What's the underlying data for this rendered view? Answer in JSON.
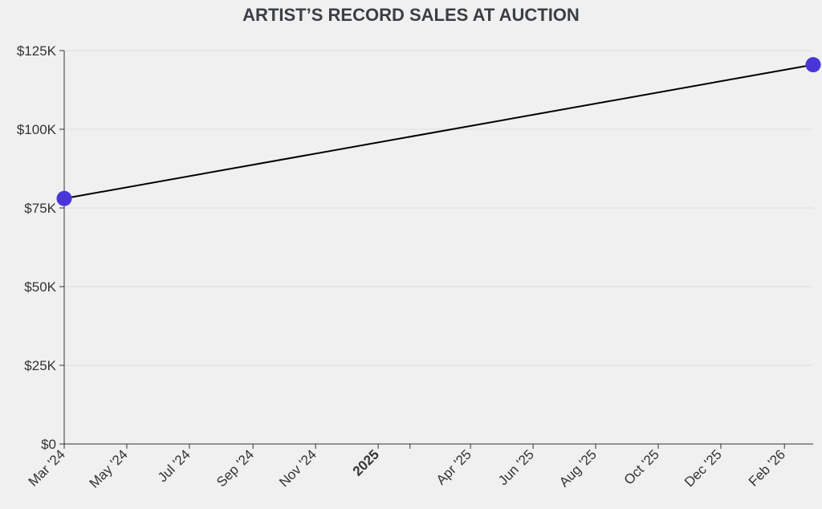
{
  "chart_data": {
    "type": "line",
    "title": "ARTIST’S RECORD SALES AT AUCTION",
    "xlabel": "",
    "ylabel": "",
    "x": [
      "2024-03-01",
      "2026-03-01"
    ],
    "values": [
      78000,
      120500
    ],
    "ylim": [
      0,
      125000
    ],
    "yticks": [
      {
        "value": 0,
        "label": "$0"
      },
      {
        "value": 25000,
        "label": "$25K"
      },
      {
        "value": 50000,
        "label": "$50K"
      },
      {
        "value": 75000,
        "label": "$75K"
      },
      {
        "value": 100000,
        "label": "$100K"
      },
      {
        "value": 125000,
        "label": "$125K"
      }
    ],
    "xticks": [
      {
        "date": "2024-03-01",
        "label": "Mar '24",
        "bold": false
      },
      {
        "date": "2024-05-01",
        "label": "May '24",
        "bold": false
      },
      {
        "date": "2024-07-01",
        "label": "Jul '24",
        "bold": false
      },
      {
        "date": "2024-09-01",
        "label": "Sep '24",
        "bold": false
      },
      {
        "date": "2024-11-01",
        "label": "Nov '24",
        "bold": false
      },
      {
        "date": "2025-01-01",
        "label": "2025",
        "bold": true
      },
      {
        "date": "2025-02-01",
        "label": "",
        "bold": false
      },
      {
        "date": "2025-04-01",
        "label": "Apr '25",
        "bold": false
      },
      {
        "date": "2025-06-01",
        "label": "Jun '25",
        "bold": false
      },
      {
        "date": "2025-08-01",
        "label": "Aug '25",
        "bold": false
      },
      {
        "date": "2025-10-01",
        "label": "Oct '25",
        "bold": false
      },
      {
        "date": "2025-12-01",
        "label": "Dec '25",
        "bold": false
      },
      {
        "date": "2026-02-01",
        "label": "Feb '26",
        "bold": false
      }
    ],
    "xlim": [
      "2024-03-01",
      "2026-03-01"
    ],
    "grid": true,
    "line_color": "#000000",
    "marker_color": "#4a35d9"
  }
}
